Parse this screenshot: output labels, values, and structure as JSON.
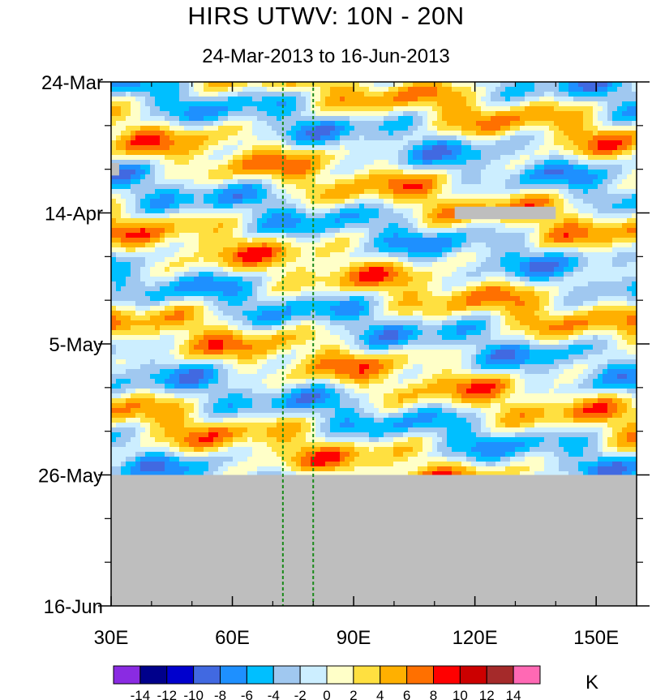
{
  "chart_data": {
    "type": "heatmap",
    "title": "HIRS UTWV: 10N - 20N",
    "subtitle": "24-Mar-2013 to 16-Jun-2013",
    "x_axis": {
      "range": [
        30,
        160
      ],
      "ticks": [
        30,
        60,
        90,
        120,
        150
      ],
      "tick_labels": [
        "30E",
        "60E",
        "90E",
        "120E",
        "150E"
      ]
    },
    "y_axis": {
      "range": [
        "2013-03-24",
        "2013-06-16"
      ],
      "direction": "time increases downward",
      "ticks": [
        "2013-03-24",
        "2013-04-14",
        "2013-05-05",
        "2013-05-26",
        "2013-06-16"
      ],
      "tick_labels": [
        "24-Mar",
        "14-Apr",
        "5-May",
        "26-May",
        "16-Jun"
      ]
    },
    "reference_lines": [
      {
        "x": 72.5,
        "style": "dashed",
        "color": "#1a8a1a"
      },
      {
        "x": 80,
        "style": "dashed",
        "color": "#1a8a1a"
      }
    ],
    "missing_data": [
      {
        "label_hint": "no data",
        "x_range": [
          30,
          160
        ],
        "y_range": [
          "2013-05-26",
          "2013-06-16"
        ]
      },
      {
        "x_range": [
          115,
          140
        ],
        "y_range": [
          "2013-04-13",
          "2013-04-15"
        ]
      },
      {
        "x_range": [
          30,
          32
        ],
        "y_range": [
          "2013-04-06",
          "2013-04-08"
        ]
      }
    ],
    "colorbar": {
      "unit": "K",
      "levels": [
        -14,
        -12,
        -10,
        -8,
        -6,
        -4,
        -2,
        0,
        2,
        4,
        6,
        8,
        10,
        12,
        14
      ],
      "level_labels": [
        "-14",
        "-12",
        "-10",
        "-8",
        "-6",
        "-4",
        "-2",
        "0",
        "2",
        "4",
        "6",
        "8",
        "10",
        "12",
        "14"
      ],
      "colors": [
        "#8a2be2",
        "#00008b",
        "#0000cd",
        "#4169e1",
        "#1e90ff",
        "#00bfff",
        "#a0c8f0",
        "#cceeff",
        "#ffffc8",
        "#ffe040",
        "#ffb000",
        "#ff7000",
        "#ff0000",
        "#cc0000",
        "#a52a2a",
        "#ff69b4"
      ]
    },
    "missing_color": "#bebebe"
  }
}
